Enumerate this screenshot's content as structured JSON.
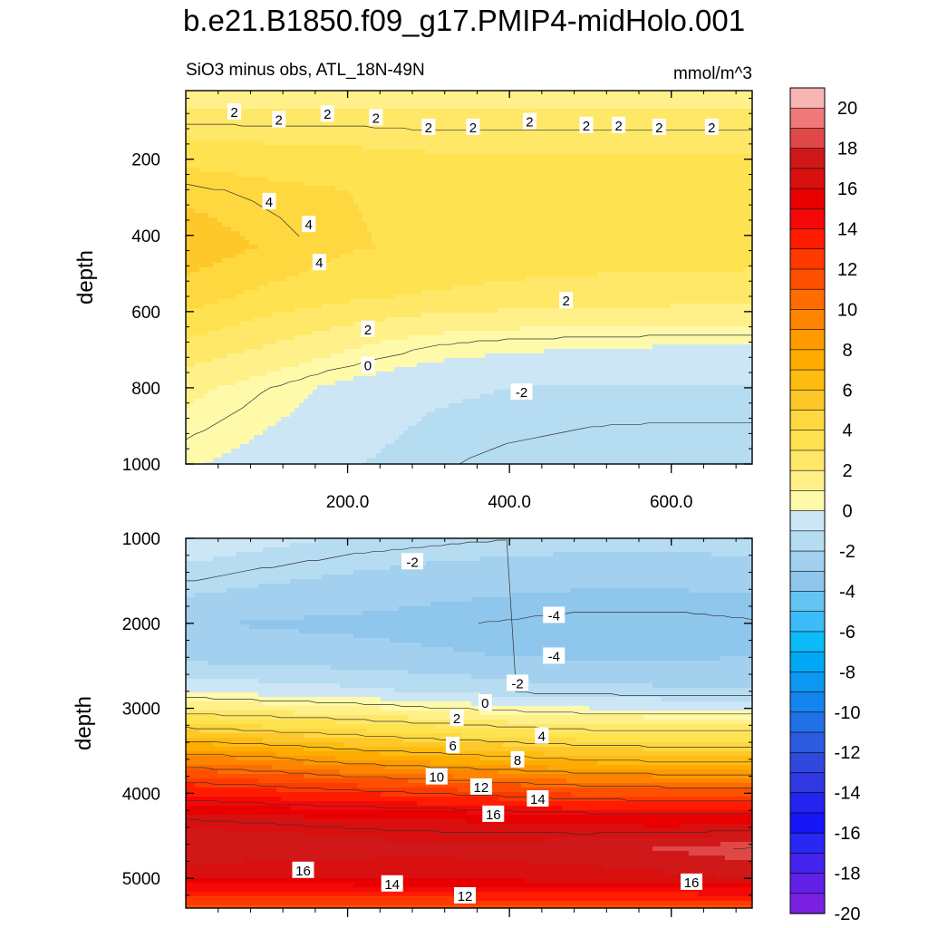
{
  "title": "b.e21.B1850.f09_g17.PMIP4-midHolo.001",
  "chart_data": [
    {
      "type": "heatmap",
      "panel": "upper",
      "title": "",
      "left_string": "SiO3 minus obs, ATL_18N-49N",
      "right_string": "mmol/m^3",
      "xlabel": "",
      "ylabel": "depth",
      "xlim": [
        0,
        700
      ],
      "ylim": [
        1000,
        20
      ],
      "x_ticks": [
        200,
        400,
        600
      ],
      "x_tick_labels": [
        "200.0",
        "400.0",
        "600.0"
      ],
      "y_ticks": [
        200,
        400,
        600,
        800,
        1000
      ],
      "y_tick_labels": [
        "200",
        "400",
        "600",
        "800",
        "1000"
      ],
      "field": [
        {
          "depth": 20,
          "values": [
            1,
            1,
            1,
            1,
            1,
            1,
            1,
            1
          ]
        },
        {
          "depth": 120,
          "values": [
            2.2,
            2.1,
            2.1,
            2,
            2,
            2,
            2,
            2
          ]
        },
        {
          "depth": 280,
          "values": [
            4.2,
            3.8,
            3.5,
            3.3,
            3.2,
            3.2,
            3.2,
            3.2
          ]
        },
        {
          "depth": 430,
          "values": [
            5.2,
            4.4,
            3.6,
            3.3,
            3.1,
            3,
            3,
            3
          ]
        },
        {
          "depth": 560,
          "values": [
            4,
            3.2,
            2.7,
            2.4,
            2.2,
            2.1,
            2,
            1.9
          ]
        },
        {
          "depth": 680,
          "values": [
            2.4,
            1.6,
            0.8,
            0.1,
            -0.2,
            -0.3,
            -0.4,
            -0.4
          ]
        },
        {
          "depth": 800,
          "values": [
            0.8,
            0,
            -0.8,
            -1.3,
            -1.5,
            -1.6,
            -1.6,
            -1.6
          ]
        },
        {
          "depth": 1000,
          "values": [
            -0.4,
            -0.9,
            -1.4,
            -1.9,
            -2.2,
            -2.4,
            -2.5,
            -2.5
          ]
        }
      ],
      "contour_labels": [
        {
          "x": 60,
          "depth": 75,
          "text": "2"
        },
        {
          "x": 115,
          "depth": 95,
          "text": "2"
        },
        {
          "x": 175,
          "depth": 80,
          "text": "2"
        },
        {
          "x": 235,
          "depth": 90,
          "text": "2"
        },
        {
          "x": 300,
          "depth": 115,
          "text": "2"
        },
        {
          "x": 355,
          "depth": 115,
          "text": "2"
        },
        {
          "x": 425,
          "depth": 100,
          "text": "2"
        },
        {
          "x": 495,
          "depth": 110,
          "text": "2"
        },
        {
          "x": 535,
          "depth": 110,
          "text": "2"
        },
        {
          "x": 585,
          "depth": 115,
          "text": "2"
        },
        {
          "x": 650,
          "depth": 115,
          "text": "2"
        },
        {
          "x": 103,
          "depth": 310,
          "text": "4"
        },
        {
          "x": 152,
          "depth": 370,
          "text": "4"
        },
        {
          "x": 165,
          "depth": 470,
          "text": "4"
        },
        {
          "x": 470,
          "depth": 570,
          "text": "2"
        },
        {
          "x": 225,
          "depth": 645,
          "text": "2"
        },
        {
          "x": 225,
          "depth": 740,
          "text": "0"
        },
        {
          "x": 415,
          "depth": 810,
          "text": "-2"
        }
      ]
    },
    {
      "type": "heatmap",
      "panel": "lower",
      "title": "",
      "xlabel": "",
      "ylabel": "depth",
      "xlim": [
        0,
        700
      ],
      "ylim": [
        5350,
        1000
      ],
      "x_ticks": [
        200,
        400,
        600
      ],
      "y_ticks": [
        1000,
        2000,
        3000,
        4000,
        5000
      ],
      "y_tick_labels": [
        "1000",
        "2000",
        "3000",
        "4000",
        "5000"
      ],
      "field": [
        {
          "depth": 1000,
          "values": [
            -0.8,
            -1.2,
            -1.6,
            -1.8,
            -2,
            -2.1,
            -2.1,
            -2
          ]
        },
        {
          "depth": 1500,
          "values": [
            -2,
            -2.4,
            -2.7,
            -3,
            -3.2,
            -3.3,
            -3.3,
            -3.2
          ]
        },
        {
          "depth": 2000,
          "values": [
            -3.4,
            -3.6,
            -3.7,
            -3.9,
            -4.1,
            -4.3,
            -4.3,
            -4.1
          ]
        },
        {
          "depth": 2400,
          "values": [
            -2.8,
            -3,
            -3.1,
            -3.3,
            -3.5,
            -3.6,
            -3.6,
            -3.5
          ]
        },
        {
          "depth": 2800,
          "values": [
            -0.6,
            -0.9,
            -1.2,
            -1.6,
            -2,
            -2.2,
            -2.3,
            -2.3
          ]
        },
        {
          "depth": 3000,
          "values": [
            1.4,
            1,
            0.7,
            0.2,
            -0.2,
            -0.5,
            -0.6,
            -0.6
          ]
        },
        {
          "depth": 3300,
          "values": [
            5,
            4.5,
            4,
            3.5,
            3,
            2.6,
            2.4,
            2.4
          ]
        },
        {
          "depth": 3600,
          "values": [
            9,
            8.5,
            7.5,
            7,
            6.5,
            6,
            5.8,
            5.8
          ]
        },
        {
          "depth": 3900,
          "values": [
            12.5,
            12,
            11.5,
            11,
            10.5,
            10,
            9.8,
            9.8
          ]
        },
        {
          "depth": 4300,
          "values": [
            16,
            15.8,
            15.6,
            15.5,
            15.2,
            15,
            14.8,
            14.8
          ]
        },
        {
          "depth": 4650,
          "values": [
            17.5,
            17.3,
            17,
            16.8,
            17,
            17.2,
            17.6,
            18.2
          ]
        },
        {
          "depth": 5000,
          "values": [
            15.5,
            15.5,
            15.5,
            15.6,
            15.8,
            16,
            16.2,
            16.5
          ]
        },
        {
          "depth": 5350,
          "values": [
            11,
            11,
            11,
            11,
            11,
            11,
            11,
            11
          ]
        }
      ],
      "contour_labels": [
        {
          "x": 280,
          "depth": 1270,
          "text": "-2"
        },
        {
          "x": 455,
          "depth": 1900,
          "text": "-4"
        },
        {
          "x": 455,
          "depth": 2380,
          "text": "-4"
        },
        {
          "x": 410,
          "depth": 2700,
          "text": "-2"
        },
        {
          "x": 370,
          "depth": 2930,
          "text": "0"
        },
        {
          "x": 335,
          "depth": 3110,
          "text": "2"
        },
        {
          "x": 440,
          "depth": 3320,
          "text": "4"
        },
        {
          "x": 330,
          "depth": 3430,
          "text": "6"
        },
        {
          "x": 410,
          "depth": 3600,
          "text": "8"
        },
        {
          "x": 310,
          "depth": 3800,
          "text": "10"
        },
        {
          "x": 365,
          "depth": 3920,
          "text": "12"
        },
        {
          "x": 435,
          "depth": 4060,
          "text": "14"
        },
        {
          "x": 380,
          "depth": 4240,
          "text": "16"
        },
        {
          "x": 145,
          "depth": 4900,
          "text": "16"
        },
        {
          "x": 255,
          "depth": 5060,
          "text": "14"
        },
        {
          "x": 345,
          "depth": 5200,
          "text": "12"
        },
        {
          "x": 625,
          "depth": 5040,
          "text": "16"
        }
      ]
    }
  ],
  "colorbar": {
    "levels": [
      20,
      18,
      16,
      14,
      12,
      10,
      8,
      6,
      4,
      2,
      0,
      -2,
      -4,
      -6,
      -8,
      -10,
      -12,
      -14,
      -16,
      -18,
      -20
    ],
    "labels": [
      "20",
      "18",
      "16",
      "14",
      "12",
      "10",
      "8",
      "6",
      "4",
      "2",
      "0",
      "-2",
      "-4",
      "-6",
      "-8",
      "-10",
      "-12",
      "-14",
      "-16",
      "-18",
      "-20"
    ],
    "colors": [
      "#f9b4b4",
      "#f07878",
      "#e04848",
      "#d01818",
      "#d81010",
      "#e80000",
      "#f40808",
      "#ff1c00",
      "#ff3a00",
      "#ff5000",
      "#ff6c00",
      "#ff8400",
      "#ff9a00",
      "#ffac00",
      "#ffbc10",
      "#ffc82a",
      "#ffd840",
      "#ffe250",
      "#ffe868",
      "#fff08a",
      "#fffaaa",
      "#cce6f6",
      "#b6dcf2",
      "#a2d0ee",
      "#8ec6ec",
      "#64c4f2",
      "#3cbcf8",
      "#0cbcf8",
      "#00a8f6",
      "#0a98f2",
      "#1484ee",
      "#2070e8",
      "#2c5ce0",
      "#3048dc",
      "#3038e4",
      "#2424f0",
      "#1616f6",
      "#2828f4",
      "#4424ec",
      "#6020e8",
      "#7a20e0"
    ]
  }
}
